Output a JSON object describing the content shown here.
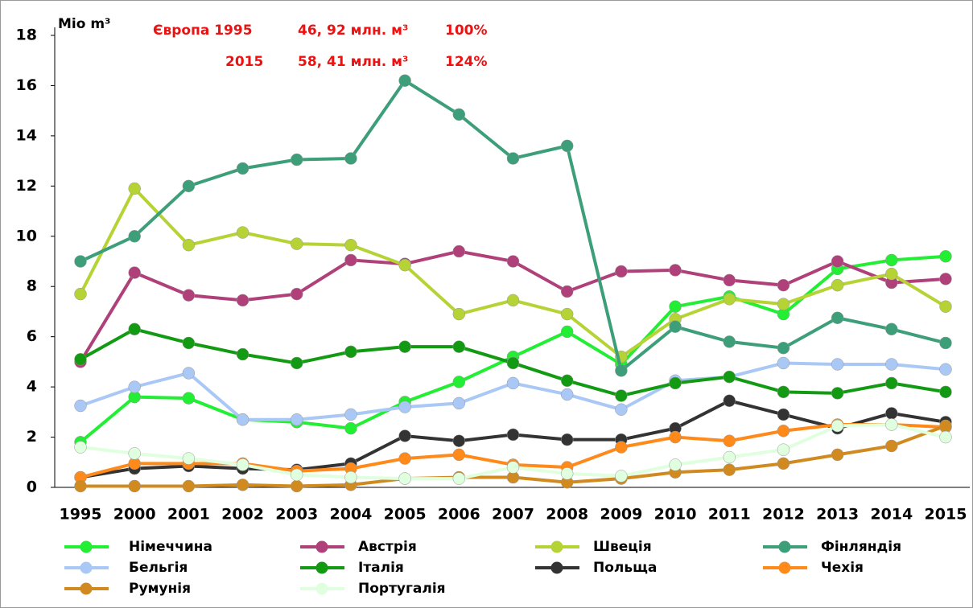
{
  "chart_data": {
    "type": "line",
    "y_label": "Mio m³",
    "annotations": [
      "Європа 1995",
      "46, 92 млн. м³",
      "100%",
      "2015",
      "58, 41 млн. м³",
      "124%"
    ],
    "categories": [
      "1995",
      "2000",
      "2001",
      "2002",
      "2003",
      "2004",
      "2005",
      "2006",
      "2007",
      "2008",
      "2009",
      "2010",
      "2011",
      "2012",
      "2013",
      "2014",
      "2015"
    ],
    "ylim": [
      0,
      18
    ],
    "yticks": [
      0,
      2,
      4,
      6,
      8,
      10,
      12,
      14,
      16,
      18
    ],
    "series": [
      {
        "name": "Німеччина",
        "color": "#22ee33",
        "values": [
          1.8,
          3.6,
          3.55,
          2.7,
          2.6,
          2.35,
          3.4,
          4.2,
          5.2,
          6.2,
          4.9,
          7.2,
          7.6,
          6.9,
          8.7,
          9.05,
          9.2
        ]
      },
      {
        "name": "Австрія",
        "color": "#b0407a",
        "values": [
          5.0,
          8.55,
          7.65,
          7.45,
          7.7,
          9.05,
          8.9,
          9.4,
          9.0,
          7.8,
          8.6,
          8.65,
          8.25,
          8.05,
          9.0,
          8.15,
          8.3
        ]
      },
      {
        "name": "Швеція",
        "color": "#b5d334",
        "values": [
          7.7,
          11.9,
          9.65,
          10.15,
          9.7,
          9.65,
          8.85,
          6.9,
          7.45,
          6.9,
          5.2,
          6.7,
          7.5,
          7.3,
          8.05,
          8.5,
          7.2
        ]
      },
      {
        "name": "Фінляндія",
        "color": "#3d9e7a",
        "values": [
          9.0,
          10.0,
          12.0,
          12.7,
          13.05,
          13.1,
          16.2,
          14.85,
          13.1,
          13.6,
          4.65,
          6.4,
          5.8,
          5.55,
          6.75,
          6.3,
          5.75
        ]
      },
      {
        "name": "Бельгія",
        "color": "#aac8f5",
        "values": [
          3.25,
          4.0,
          4.55,
          2.7,
          2.7,
          2.9,
          3.2,
          3.35,
          4.15,
          3.7,
          3.1,
          4.25,
          4.4,
          4.95,
          4.9,
          4.9,
          4.7
        ]
      },
      {
        "name": "Італія",
        "color": "#139a13",
        "values": [
          5.1,
          6.3,
          5.75,
          5.3,
          4.95,
          5.4,
          5.6,
          5.6,
          4.95,
          4.25,
          3.65,
          4.15,
          4.4,
          3.8,
          3.75,
          4.15,
          3.8
        ]
      },
      {
        "name": "Польща",
        "color": "#333333",
        "values": [
          0.4,
          0.75,
          0.85,
          0.75,
          0.7,
          0.95,
          2.05,
          1.85,
          2.1,
          1.9,
          1.9,
          2.35,
          3.45,
          2.9,
          2.35,
          2.95,
          2.6
        ]
      },
      {
        "name": "Чехія",
        "color": "#ff8a1a",
        "values": [
          0.4,
          0.95,
          0.95,
          0.95,
          0.65,
          0.75,
          1.15,
          1.3,
          0.9,
          0.8,
          1.6,
          2.0,
          1.85,
          2.25,
          2.5,
          2.5,
          2.4
        ]
      },
      {
        "name": "Румунія",
        "color": "#d08a20",
        "values": [
          0.05,
          0.05,
          0.05,
          0.1,
          0.05,
          0.1,
          0.35,
          0.4,
          0.4,
          0.2,
          0.35,
          0.6,
          0.7,
          0.95,
          1.3,
          1.65,
          2.45
        ]
      },
      {
        "name": "Португалія",
        "color": "#dfffdf",
        "values": [
          1.6,
          1.35,
          1.15,
          0.9,
          0.5,
          0.4,
          0.35,
          0.35,
          0.8,
          0.55,
          0.45,
          0.9,
          1.2,
          1.5,
          2.45,
          2.5,
          2.0
        ]
      }
    ]
  }
}
